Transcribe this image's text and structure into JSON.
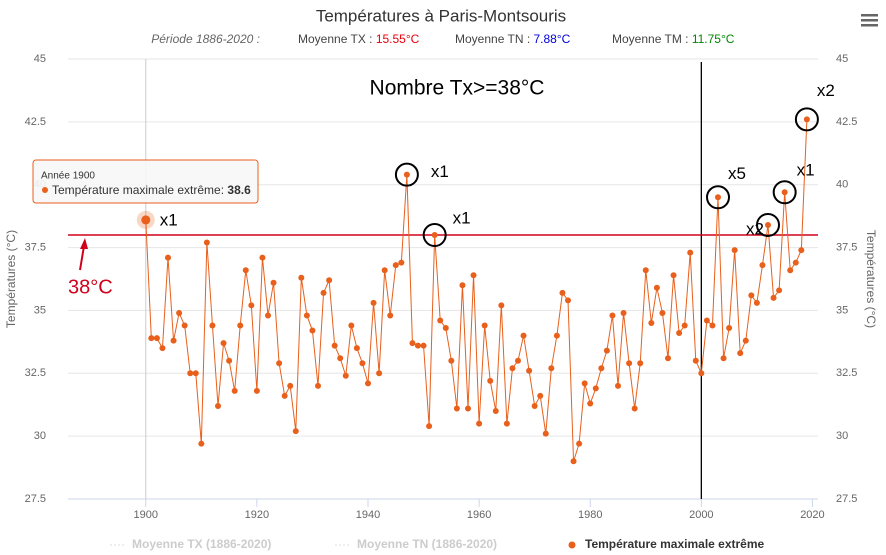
{
  "chart_data": {
    "type": "line",
    "title": "Températures à Paris-Montsouris",
    "subtitle": {
      "period": "Période 1886-2020 :",
      "items": [
        {
          "label": "Moyenne TX :",
          "value": "15.55°C",
          "color": "#e8000b"
        },
        {
          "label": "Moyenne TN :",
          "value": "7.88°C",
          "color": "#0000dd"
        },
        {
          "label": "Moyenne TM :",
          "value": "11.75°C",
          "color": "#008800"
        }
      ]
    },
    "ylabel": "Températures (°C)",
    "y2label": "Températures (°C)",
    "x": [
      1900,
      1901,
      1902,
      1903,
      1904,
      1905,
      1906,
      1907,
      1908,
      1909,
      1910,
      1911,
      1912,
      1913,
      1914,
      1915,
      1916,
      1917,
      1918,
      1919,
      1920,
      1921,
      1922,
      1923,
      1924,
      1925,
      1926,
      1927,
      1928,
      1929,
      1930,
      1931,
      1932,
      1933,
      1934,
      1935,
      1936,
      1937,
      1938,
      1939,
      1940,
      1941,
      1942,
      1943,
      1944,
      1945,
      1946,
      1947,
      1948,
      1949,
      1950,
      1951,
      1952,
      1953,
      1954,
      1955,
      1956,
      1957,
      1958,
      1959,
      1960,
      1961,
      1962,
      1963,
      1964,
      1965,
      1966,
      1967,
      1968,
      1969,
      1970,
      1971,
      1972,
      1973,
      1974,
      1975,
      1976,
      1977,
      1978,
      1979,
      1980,
      1981,
      1982,
      1983,
      1984,
      1985,
      1986,
      1987,
      1988,
      1989,
      1990,
      1991,
      1992,
      1993,
      1994,
      1995,
      1996,
      1997,
      1998,
      1999,
      2000,
      2001,
      2002,
      2003,
      2004,
      2005,
      2006,
      2007,
      2008,
      2009,
      2010,
      2011,
      2012,
      2013,
      2014,
      2015,
      2016,
      2017,
      2018,
      2019
    ],
    "series": [
      {
        "name": "Température maximale extrême",
        "color": "#e8601c",
        "values": [
          38.6,
          33.9,
          33.9,
          33.5,
          37.1,
          33.8,
          34.9,
          34.4,
          32.5,
          32.5,
          29.7,
          37.7,
          34.4,
          31.2,
          33.7,
          33.0,
          31.8,
          34.4,
          36.6,
          35.2,
          31.8,
          37.1,
          34.8,
          36.1,
          32.9,
          31.6,
          32.0,
          30.2,
          36.3,
          34.8,
          34.2,
          32.0,
          35.7,
          36.2,
          33.6,
          33.1,
          32.4,
          34.4,
          33.5,
          32.9,
          32.1,
          35.3,
          32.5,
          36.6,
          34.8,
          36.8,
          36.9,
          40.4,
          33.7,
          33.6,
          33.6,
          30.4,
          38.0,
          34.6,
          34.3,
          33.0,
          31.1,
          36.0,
          31.1,
          36.4,
          30.5,
          34.4,
          32.2,
          31.0,
          35.2,
          30.5,
          32.7,
          33.0,
          34.0,
          32.6,
          31.2,
          31.6,
          30.1,
          32.7,
          34.0,
          35.7,
          35.4,
          29.0,
          29.7,
          32.1,
          31.3,
          31.9,
          32.7,
          33.4,
          34.8,
          32.0,
          34.9,
          32.9,
          31.1,
          32.9,
          36.6,
          34.5,
          35.9,
          34.9,
          33.1,
          36.4,
          34.1,
          34.4,
          37.3,
          33.0,
          32.5,
          34.6,
          34.4,
          39.5,
          33.1,
          34.3,
          37.4,
          33.3,
          33.8,
          35.6,
          35.3,
          36.8,
          38.4,
          35.5,
          35.8,
          39.7,
          36.6,
          36.9,
          37.4,
          42.6
        ]
      }
    ],
    "hidden_legend": [
      "Moyenne TX (1886-2020)",
      "Moyenne TN (1886-2020)"
    ],
    "xlim": [
      1886,
      2021
    ],
    "xticks": [
      1900,
      1920,
      1940,
      1960,
      1980,
      2000,
      2020
    ],
    "ylim": [
      27.5,
      45
    ],
    "yticks": [
      27.5,
      30,
      32.5,
      35,
      37.5,
      40,
      42.5,
      45
    ],
    "y2lim": [
      27.5,
      45
    ],
    "y2ticks": [
      27.5,
      30,
      32.5,
      35,
      37.5,
      40,
      42.5,
      45
    ],
    "grid": true,
    "threshold": {
      "value": 38,
      "label": "38°C",
      "color": "#d0021b"
    },
    "vline": 2000,
    "annotation_title": "Nombre Tx>=38°C",
    "annotations": [
      {
        "x": 1900,
        "label": "x1"
      },
      {
        "x": 1947,
        "label": "x1"
      },
      {
        "x": 1952,
        "label": "x1"
      },
      {
        "x": 2003,
        "label": "x5"
      },
      {
        "x": 2012,
        "label": "x2"
      },
      {
        "x": 2015,
        "label": "x1"
      },
      {
        "x": 2019,
        "label": "x2"
      }
    ],
    "tooltip": {
      "title": "Année 1900",
      "label": "Température maximale extrême:"
    }
  }
}
